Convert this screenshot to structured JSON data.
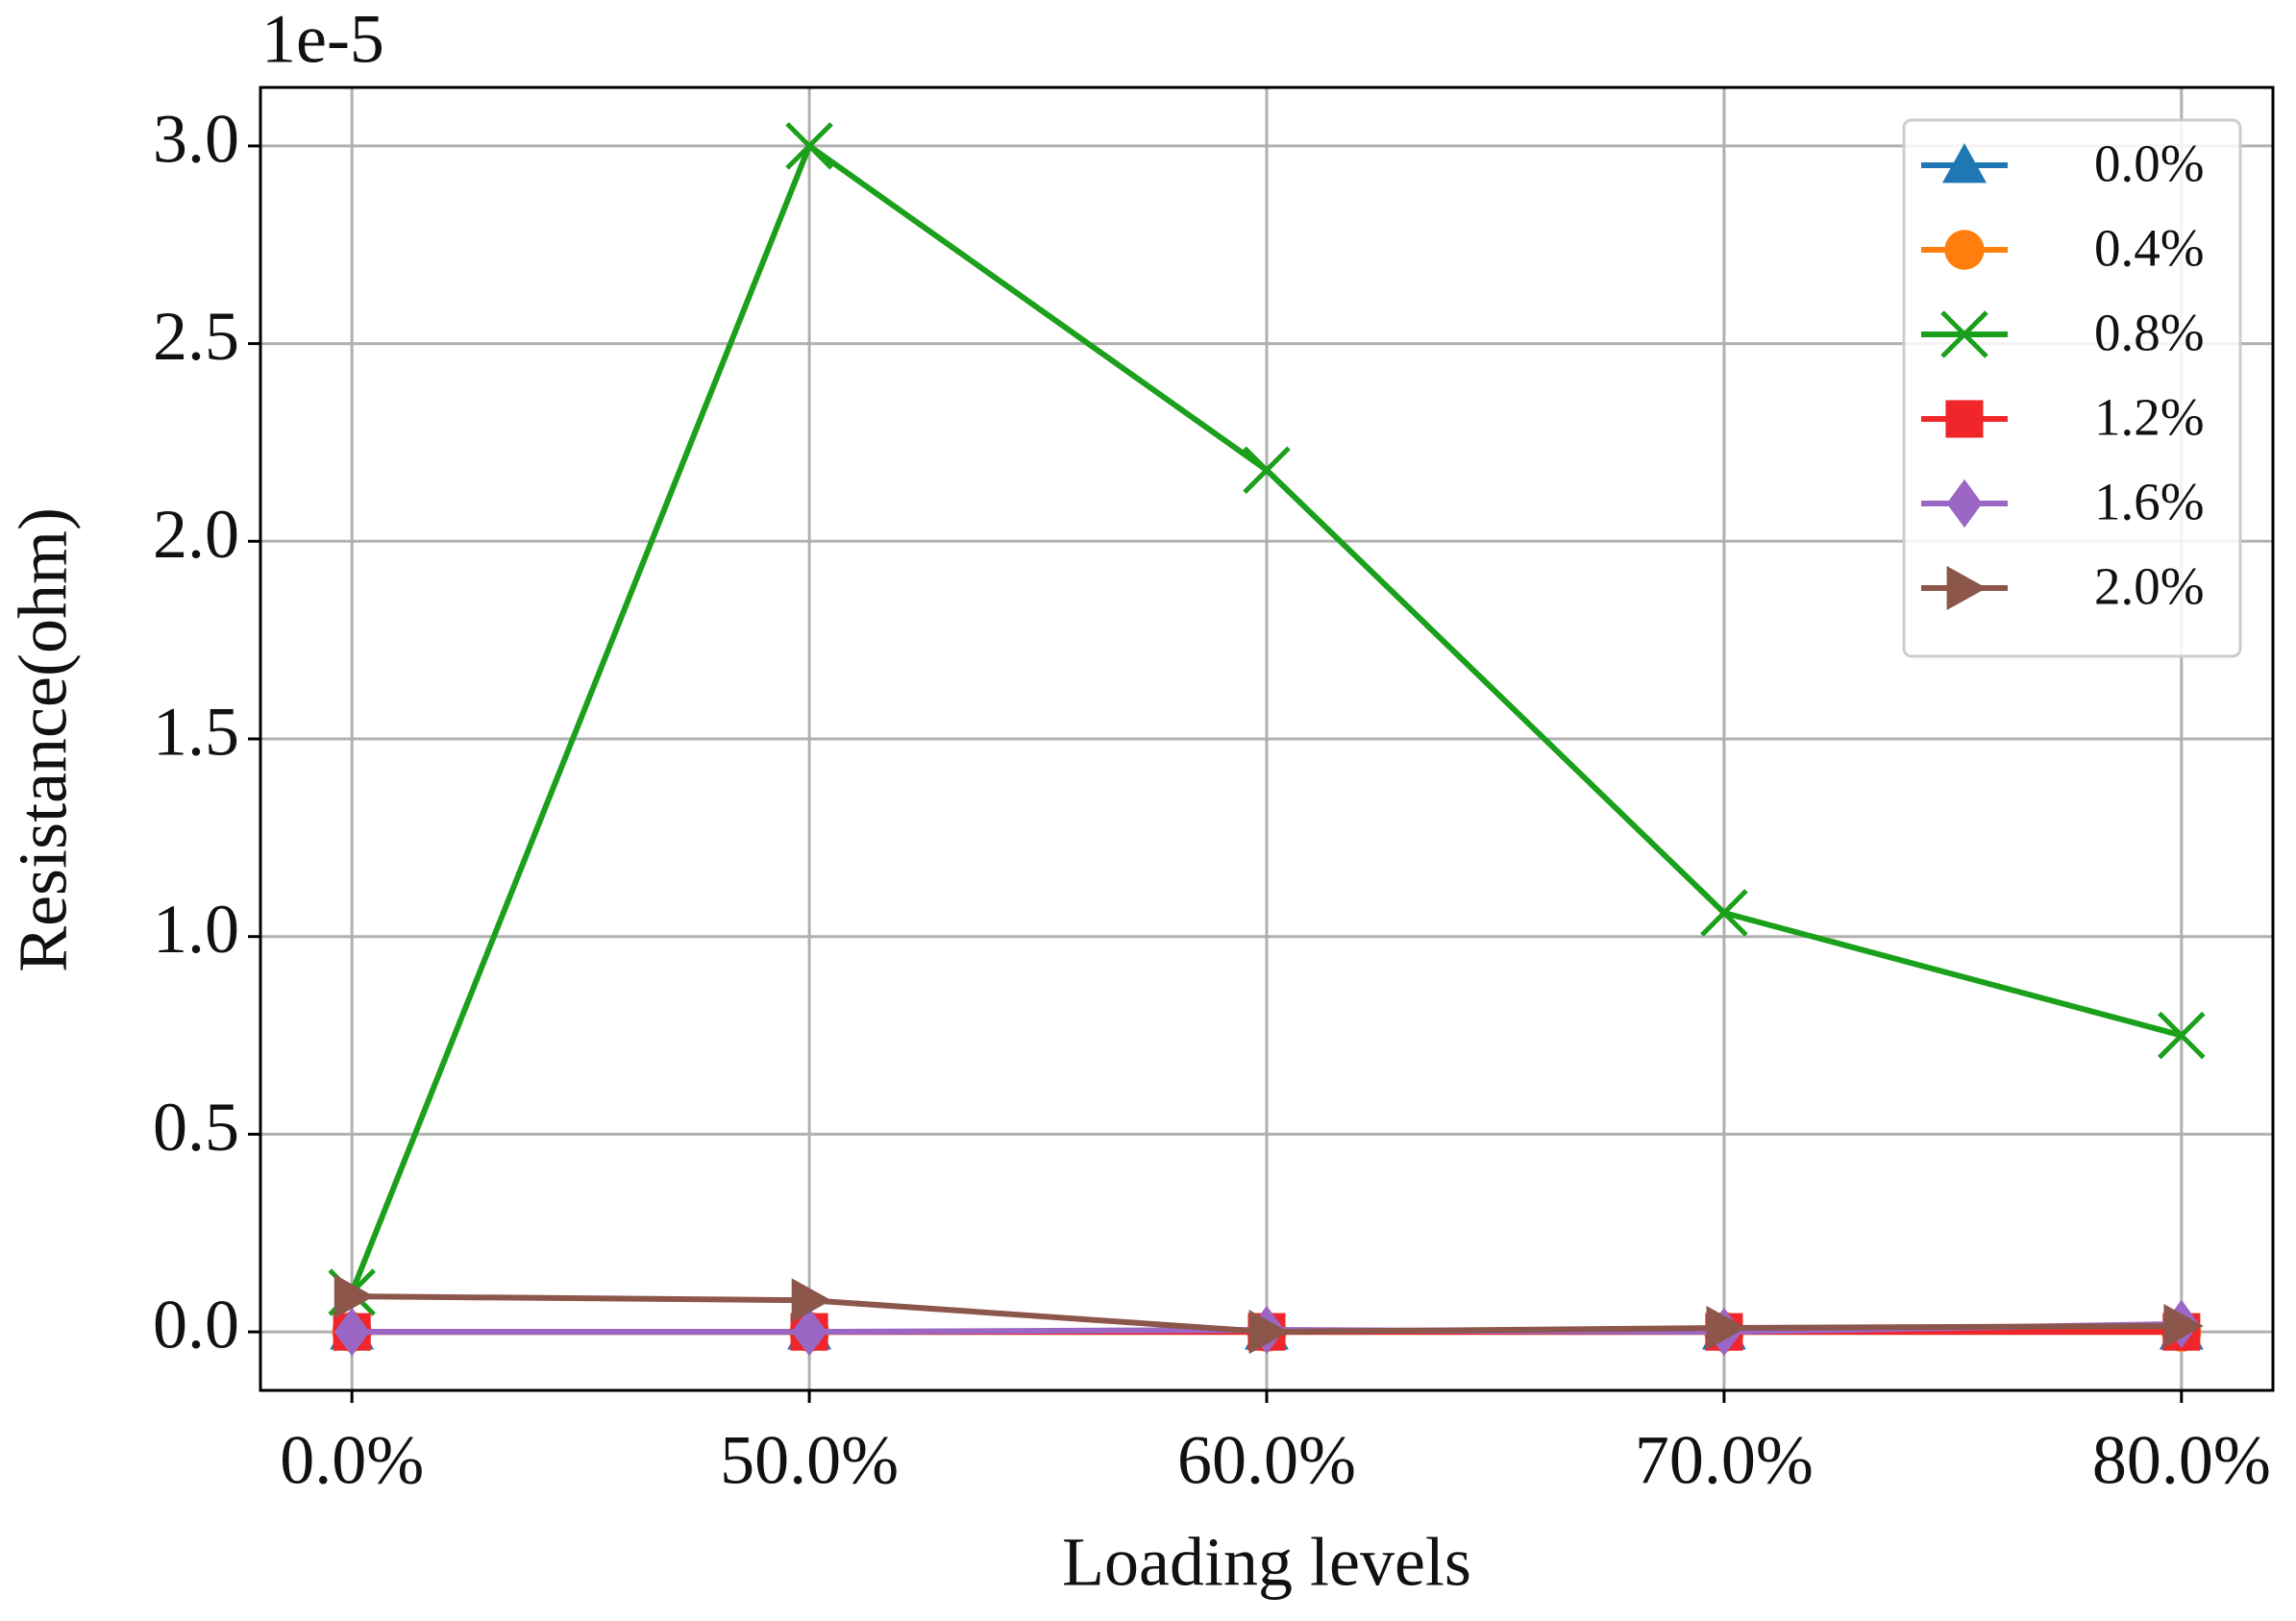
{
  "chart_data": {
    "type": "line",
    "y_offset_label": "1e-5",
    "x_label": "Loading levels",
    "y_label": "Resistance(ohm)",
    "categories": [
      "0.0%",
      "50.0%",
      "60.0%",
      "70.0%",
      "80.0%"
    ],
    "series": [
      {
        "name": "0.0%",
        "color": "#1f77b4",
        "marker": "triangle-up",
        "values": [
          0,
          0,
          0,
          0,
          0
        ]
      },
      {
        "name": "0.4%",
        "color": "#ff7f0e",
        "marker": "circle",
        "values": [
          0,
          0,
          0,
          0,
          0
        ]
      },
      {
        "name": "0.8%",
        "color": "#1aa01a",
        "marker": "x",
        "values": [
          0.1,
          3.0,
          2.18,
          1.06,
          0.75
        ]
      },
      {
        "name": "1.2%",
        "color": "#f0262a",
        "marker": "square",
        "values": [
          0,
          0,
          0,
          0,
          0
        ]
      },
      {
        "name": "1.6%",
        "color": "#9b66c4",
        "marker": "diamond",
        "values": [
          0,
          0,
          0.005,
          0,
          0.02
        ]
      },
      {
        "name": "2.0%",
        "color": "#8c564b",
        "marker": "triangle-right",
        "values": [
          0.09,
          0.08,
          0.0,
          0.01,
          0.015
        ]
      }
    ],
    "ylim": [
      -0.148,
      3.148
    ],
    "yticks": [
      {
        "value": 0,
        "label": "0.0"
      },
      0.5,
      {
        "value": 1,
        "label": "1.0"
      },
      1.5,
      {
        "value": 2,
        "label": "2.0"
      },
      2.5,
      {
        "value": 3,
        "label": "3.0"
      }
    ],
    "grid": true,
    "legend": "upper right"
  }
}
